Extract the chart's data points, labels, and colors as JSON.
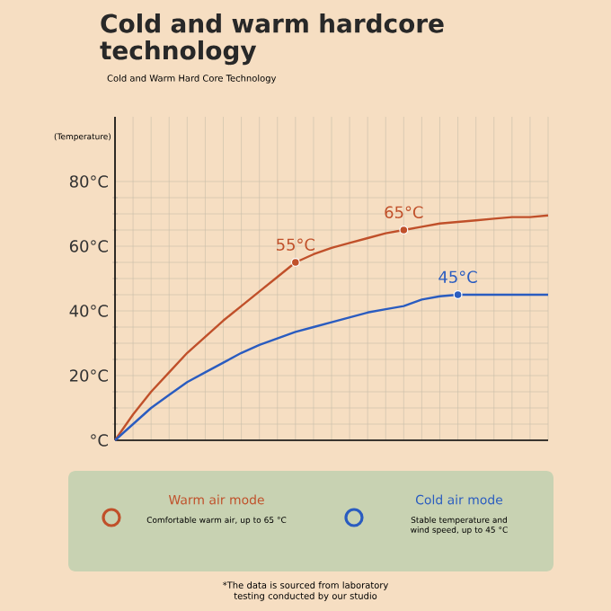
{
  "chart_data": {
    "type": "line",
    "title": "Cold and warm hardcore technology",
    "subtitle": "Cold and Warm Hard Core Technology",
    "ylabel": "(Temperature)",
    "categories": [
      null,
      null,
      null,
      null,
      null,
      null,
      null,
      null,
      null,
      null,
      null,
      null,
      null,
      null,
      null,
      null,
      null,
      null,
      null,
      null,
      null,
      null,
      null,
      null,
      null
    ],
    "series": [
      {
        "name": "Warm air mode",
        "color": "#c0502a",
        "values": [
          0,
          8,
          15,
          21,
          27,
          32,
          37,
          41.5,
          46,
          50.5,
          55,
          57.5,
          59.5,
          61,
          62.5,
          64,
          65,
          66,
          67,
          67.5,
          68,
          68.5,
          69,
          69,
          69.5
        ]
      },
      {
        "name": "Cold air mode",
        "color": "#2a5cc0",
        "values": [
          0,
          5,
          10,
          14,
          18,
          21,
          24,
          27,
          29.5,
          31.5,
          33.5,
          35,
          36.5,
          38,
          39.5,
          40.5,
          41.5,
          43.5,
          44.5,
          45,
          45,
          45,
          45,
          45,
          45
        ]
      },
      {
        "type": "scatter",
        "color": "#c0502a",
        "values": [
          null,
          null,
          null,
          null,
          null,
          null,
          null,
          null,
          null,
          null,
          55,
          null,
          null,
          null,
          null,
          null,
          65,
          null,
          null,
          null,
          null,
          null,
          null,
          null,
          null
        ],
        "value_labels": [
          null,
          null,
          null,
          null,
          null,
          null,
          null,
          null,
          null,
          null,
          "55°C",
          null,
          null,
          null,
          null,
          null,
          "65°C",
          null,
          null,
          null,
          null,
          null,
          null,
          null,
          null
        ]
      },
      {
        "type": "scatter",
        "color": "#2a5cc0",
        "values": [
          null,
          null,
          null,
          null,
          null,
          null,
          null,
          null,
          null,
          null,
          null,
          null,
          null,
          null,
          null,
          null,
          null,
          null,
          null,
          45,
          null,
          null,
          null,
          null,
          null
        ],
        "value_labels": [
          null,
          null,
          null,
          null,
          null,
          null,
          null,
          null,
          null,
          null,
          null,
          null,
          null,
          null,
          null,
          null,
          null,
          null,
          null,
          "45°C",
          null,
          null,
          null,
          null,
          null
        ]
      }
    ],
    "ylim": [
      0,
      100
    ],
    "yticks": [
      {
        "value": 0,
        "label": "°C"
      },
      {
        "value": 20,
        "label": "20°C"
      },
      {
        "value": 40,
        "label": "40°C"
      },
      {
        "value": 60,
        "label": "60°C"
      },
      {
        "value": 80,
        "label": "80°C"
      }
    ],
    "tick_labels": "y",
    "grid": true,
    "legend": "bottom",
    "line_style": "solid",
    "annotations": [
      "Comfortable warm air, up to 65 °C",
      "Stable temperature and wind speed, up to 45 °C",
      "*The data is sourced from laboratory testing conducted by our studio"
    ]
  }
}
